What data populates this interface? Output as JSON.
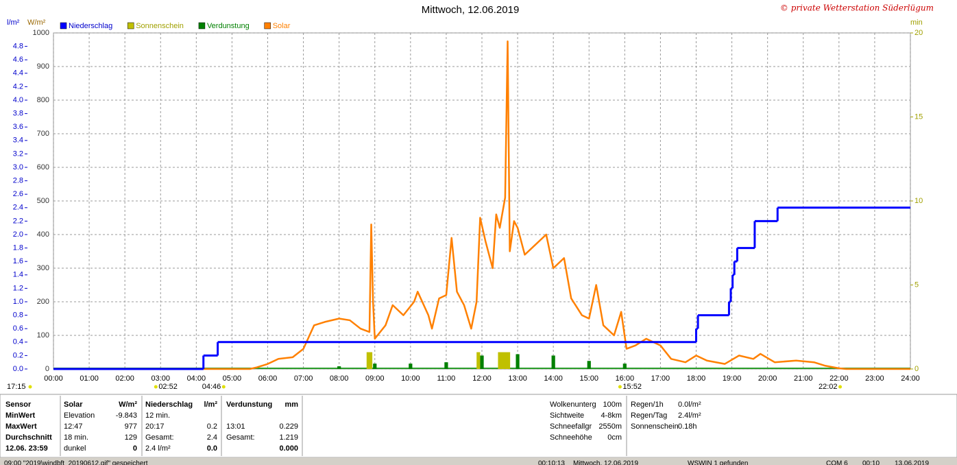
{
  "chart_data": {
    "type": "weather",
    "title": "Mittwoch, 12.06.2019",
    "copyright": "© private Wetterstation Süderlügum",
    "ylabel": "l/m²",
    "y3label": "W/m²",
    "y2label": "min",
    "xlim": [
      0,
      24
    ],
    "xticks": [
      {
        "value": 0,
        "label": "00:00"
      },
      {
        "value": 1,
        "label": "01:00"
      },
      {
        "value": 2,
        "label": "02:00"
      },
      {
        "value": 3,
        "label": "03:00"
      },
      {
        "value": 4,
        "label": "04:00"
      },
      {
        "value": 5,
        "label": "05:00"
      },
      {
        "value": 6,
        "label": "06:00"
      },
      {
        "value": 7,
        "label": "07:00"
      },
      {
        "value": 8,
        "label": "08:00"
      },
      {
        "value": 9,
        "label": "09:00"
      },
      {
        "value": 10,
        "label": "10:00"
      },
      {
        "value": 11,
        "label": "11:00"
      },
      {
        "value": 12,
        "label": "12:00"
      },
      {
        "value": 13,
        "label": "13:00"
      },
      {
        "value": 14,
        "label": "14:00"
      },
      {
        "value": 15,
        "label": "15:00"
      },
      {
        "value": 16,
        "label": "16:00"
      },
      {
        "value": 17,
        "label": "17:00"
      },
      {
        "value": 18,
        "label": "18:00"
      },
      {
        "value": 19,
        "label": "19:00"
      },
      {
        "value": 20,
        "label": "20:00"
      },
      {
        "value": 21,
        "label": "21:00"
      },
      {
        "value": 22,
        "label": "22:00"
      },
      {
        "value": 23,
        "label": "23:00"
      },
      {
        "value": 24,
        "label": "24:00"
      }
    ],
    "ylim": [
      0,
      5
    ],
    "yticks": [
      {
        "value": 0,
        "label": "0.0"
      },
      0.2,
      0.4,
      0.6,
      0.8,
      {
        "value": 1,
        "label": "1.0"
      },
      1.2,
      1.4,
      1.6,
      1.8,
      {
        "value": 2,
        "label": "2.0"
      },
      2.2,
      2.4,
      2.6,
      2.8,
      {
        "value": 3,
        "label": "3.0"
      },
      3.2,
      3.4,
      3.6,
      3.8,
      {
        "value": 4,
        "label": "4.0"
      },
      4.2,
      4.4,
      4.6,
      4.8
    ],
    "y3lim": [
      0,
      1000
    ],
    "y3ticks": [
      0,
      100,
      200,
      300,
      400,
      500,
      600,
      700,
      800,
      900,
      1000
    ],
    "y2lim": [
      0,
      20
    ],
    "y2ticks": [
      0,
      5,
      10,
      15,
      20
    ],
    "grid": true,
    "series": [
      {
        "name": "Niederschlag",
        "color": "#0000ff",
        "style": "step",
        "axis": "y",
        "x": [
          0,
          4.2,
          4.6,
          18.0,
          18.05,
          18.92,
          18.97,
          19.02,
          19.07,
          19.15,
          19.64,
          20.28
        ],
        "values": [
          0,
          0.2,
          0.4,
          0.6,
          0.8,
          1.0,
          1.2,
          1.4,
          1.6,
          1.8,
          2.2,
          2.4
        ]
      },
      {
        "name": "Sonnenschein",
        "color": "#c0c000",
        "style": "bar",
        "axis": "y2",
        "x": [
          8.82,
          8.88,
          11.9,
          12.5,
          12.58,
          12.66,
          12.74
        ],
        "values": [
          1,
          1,
          1,
          1,
          1,
          1,
          1
        ]
      },
      {
        "name": "Verdunstung",
        "color": "#008000",
        "style": "bar",
        "axis": "y",
        "x": [
          8.0,
          9.0,
          10.0,
          11.0,
          12.0,
          13.0,
          14.0,
          15.0,
          16.0
        ],
        "values": [
          0.04,
          0.08,
          0.08,
          0.1,
          0.2,
          0.22,
          0.2,
          0.12,
          0.08
        ]
      },
      {
        "name": "Solar",
        "color": "#ff8000",
        "style": "line",
        "axis": "y3",
        "x": [
          0,
          5.5,
          5.7,
          6.0,
          6.3,
          6.7,
          7.0,
          7.3,
          7.6,
          8.0,
          8.3,
          8.6,
          8.85,
          8.9,
          8.95,
          9.0,
          9.3,
          9.5,
          9.8,
          10.1,
          10.2,
          10.5,
          10.6,
          10.8,
          11.0,
          11.15,
          11.3,
          11.5,
          11.7,
          11.85,
          11.95,
          12.1,
          12.3,
          12.4,
          12.5,
          12.65,
          12.72,
          12.78,
          12.9,
          13.0,
          13.2,
          13.5,
          13.8,
          14.0,
          14.3,
          14.5,
          14.8,
          15.0,
          15.2,
          15.4,
          15.7,
          15.9,
          16.05,
          16.3,
          16.6,
          17.0,
          17.3,
          17.7,
          18.0,
          18.3,
          18.8,
          19.2,
          19.6,
          19.8,
          20.2,
          20.8,
          21.3,
          21.6,
          22.0,
          22.2,
          24
        ],
        "values": [
          0,
          0,
          5,
          15,
          30,
          35,
          60,
          130,
          140,
          150,
          145,
          120,
          110,
          430,
          200,
          90,
          130,
          190,
          160,
          200,
          230,
          160,
          120,
          210,
          220,
          390,
          230,
          190,
          120,
          200,
          450,
          380,
          300,
          460,
          420,
          510,
          975,
          350,
          440,
          420,
          340,
          370,
          400,
          300,
          330,
          210,
          160,
          150,
          250,
          130,
          100,
          170,
          60,
          70,
          90,
          70,
          30,
          20,
          40,
          25,
          15,
          40,
          30,
          45,
          20,
          25,
          20,
          10,
          2,
          0,
          0
        ]
      }
    ],
    "markers": [
      {
        "label": "02:52",
        "x": 2.867
      },
      {
        "label": "04:46",
        "x": 4.767
      },
      {
        "label": "15:52",
        "x": 15.867
      },
      {
        "label": "22:02",
        "x": 22.033
      }
    ],
    "prev_marker": "17:15"
  },
  "stats": {
    "rows": [
      [
        "Sensor",
        "Solar",
        "W/m²",
        "Niederschlag",
        "l/m²",
        "Verdunstung",
        "mm"
      ],
      [
        "MinWert",
        "Elevation",
        "-9.843",
        "12 min.",
        "",
        "",
        ""
      ],
      [
        "MaxWert",
        "12:47",
        "977",
        "20:17",
        "0.2",
        "13:01",
        "0.229"
      ],
      [
        "Durchschnitt",
        "18 min.",
        "129",
        "Gesamt:",
        "2.4",
        "Gesamt:",
        "1.219"
      ],
      [
        "12.06. 23:59",
        "dunkel",
        "0",
        "2.4 l/m²",
        "0.0",
        "",
        "0.000"
      ]
    ],
    "info": [
      [
        "Wolkenunterg",
        "100m"
      ],
      [
        "Sichtweite",
        "4-8km"
      ],
      [
        "Schneefallgr",
        "2550m"
      ],
      [
        "Schneehöhe",
        "0cm"
      ]
    ],
    "info2": [
      [
        "Regen/1h",
        "0.0l/m²"
      ],
      [
        "Regen/Tag",
        "2.4l/m²"
      ],
      [
        "Sonnenschein",
        "0.18h"
      ]
    ]
  },
  "status": [
    "09:00  \"2019\\windbft_20190612.gif\" gespeichert",
    "00:10:13",
    "Mittwoch, 12.06.2019",
    "WSWIN 1 gefunden",
    "COM 6",
    "00:10",
    "13.06.2019"
  ]
}
